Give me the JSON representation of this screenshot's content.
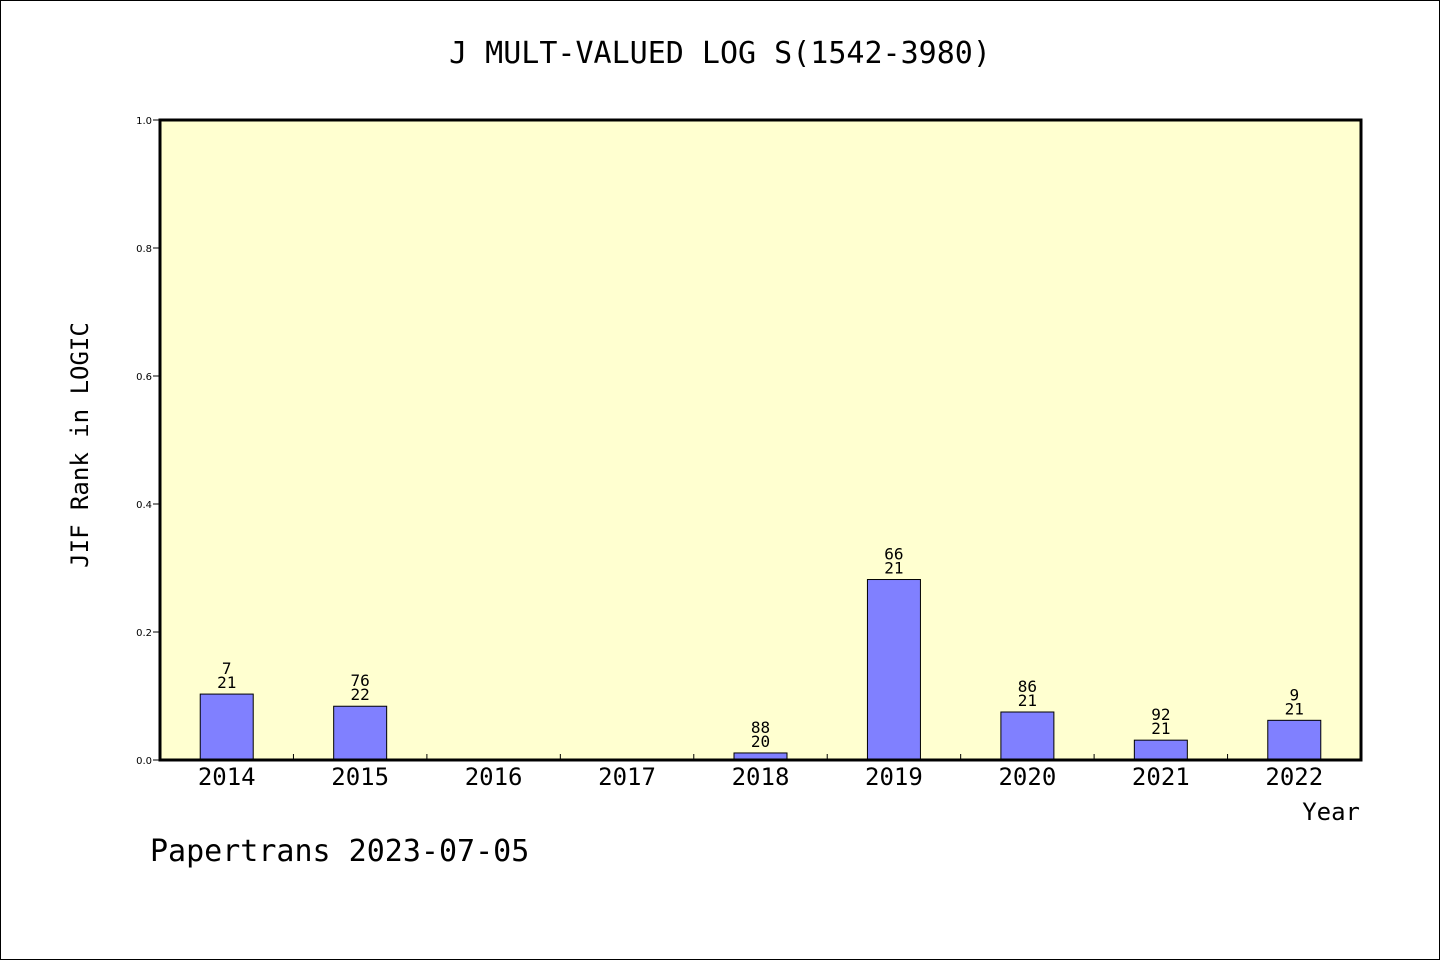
{
  "chart_data": {
    "type": "bar",
    "title": "J MULT-VALUED LOG S(1542-3980)",
    "xlabel": "Year",
    "ylabel": "JIF Rank in LOGIC",
    "ylim": [
      0,
      1.0
    ],
    "yticks": [
      "0.0",
      "0.2",
      "0.4",
      "0.6",
      "0.8",
      "1.0"
    ],
    "categories": [
      "2014",
      "2015",
      "2016",
      "2017",
      "2018",
      "2019",
      "2020",
      "2021",
      "2022"
    ],
    "values": [
      0.103,
      0.084,
      0,
      0,
      0.011,
      0.282,
      0.075,
      0.031,
      0.062
    ],
    "bar_labels": [
      [
        "7",
        "21"
      ],
      [
        "76",
        "22"
      ],
      null,
      null,
      [
        "88",
        "20"
      ],
      [
        "66",
        "21"
      ],
      [
        "86",
        "21"
      ],
      [
        "92",
        "21"
      ],
      [
        "9",
        "21"
      ]
    ],
    "grid": false,
    "colors": {
      "bar": "#8080ff",
      "plot_background": "#ffffd0",
      "axis": "#000000"
    }
  },
  "footer": "Papertrans 2023-07-05"
}
